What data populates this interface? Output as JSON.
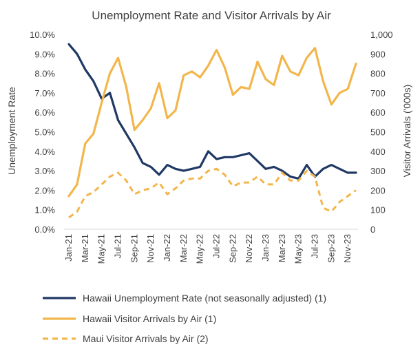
{
  "chart_data": {
    "type": "line",
    "title": "Unemployment Rate and Visitor Arrivals by Air",
    "ylabel": "Unemployment Rate",
    "y2label": "Visitor Arrivals ('000s)",
    "ylim": [
      0,
      10
    ],
    "y2lim": [
      0,
      1000
    ],
    "yticks": [
      "0.0%",
      "1.0%",
      "2.0%",
      "3.0%",
      "4.0%",
      "5.0%",
      "6.0%",
      "7.0%",
      "8.0%",
      "9.0%",
      "10.0%"
    ],
    "y2ticks": [
      "0",
      "100",
      "200",
      "300",
      "400",
      "500",
      "600",
      "700",
      "800",
      "900",
      "1,000"
    ],
    "x": [
      "Jan-21",
      "Feb-21",
      "Mar-21",
      "Apr-21",
      "May-21",
      "Jun-21",
      "Jul-21",
      "Aug-21",
      "Sep-21",
      "Oct-21",
      "Nov-21",
      "Dec-21",
      "Jan-22",
      "Feb-22",
      "Mar-22",
      "Apr-22",
      "May-22",
      "Jun-22",
      "Jul-22",
      "Aug-22",
      "Sep-22",
      "Oct-22",
      "Nov-22",
      "Dec-22",
      "Jan-23",
      "Feb-23",
      "Mar-23",
      "Apr-23",
      "May-23",
      "Jun-23",
      "Jul-23",
      "Aug-23",
      "Sep-23",
      "Oct-23",
      "Nov-23",
      "Dec-23"
    ],
    "xticks": [
      "Jan-21",
      "Mar-21",
      "May-21",
      "Jul-21",
      "Sep-21",
      "Nov-21",
      "Jan-22",
      "Mar-22",
      "May-22",
      "Jul-22",
      "Sep-22",
      "Nov-22",
      "Jan-23",
      "Mar-23",
      "May-23",
      "Jul-23",
      "Sep-23",
      "Nov-23"
    ],
    "grid": false,
    "legend_position": "bottom",
    "series": [
      {
        "name": "Hawaii Unemployment Rate (not seasonally adjusted) (1)",
        "axis": "left",
        "style": "solid",
        "color": "#1f3864",
        "values": [
          9.5,
          9.0,
          8.2,
          7.6,
          6.7,
          7.0,
          5.6,
          4.9,
          4.2,
          3.4,
          3.2,
          2.8,
          3.3,
          3.1,
          3.0,
          3.1,
          3.2,
          4.0,
          3.6,
          3.7,
          3.7,
          3.8,
          3.9,
          3.5,
          3.1,
          3.2,
          3.0,
          2.7,
          2.6,
          3.3,
          2.7,
          3.1,
          3.3,
          3.1,
          2.9,
          2.9
        ]
      },
      {
        "name": "Hawaii Visitor Arrivals by Air (1)",
        "axis": "right",
        "style": "solid",
        "color": "#f2b64c",
        "values": [
          170,
          230,
          440,
          490,
          650,
          800,
          880,
          730,
          510,
          560,
          620,
          750,
          570,
          610,
          790,
          810,
          780,
          840,
          920,
          830,
          690,
          730,
          720,
          860,
          770,
          740,
          890,
          810,
          790,
          880,
          930,
          760,
          640,
          700,
          720,
          850
        ]
      },
      {
        "name": "Maui Visitor Arrivals by Air (2)",
        "axis": "right",
        "style": "dashed",
        "color": "#f2b64c",
        "values": [
          60,
          90,
          170,
          190,
          230,
          270,
          290,
          250,
          180,
          200,
          210,
          240,
          180,
          210,
          250,
          260,
          260,
          300,
          310,
          280,
          220,
          240,
          240,
          270,
          230,
          230,
          290,
          250,
          250,
          300,
          270,
          110,
          90,
          140,
          170,
          200
        ]
      }
    ]
  }
}
